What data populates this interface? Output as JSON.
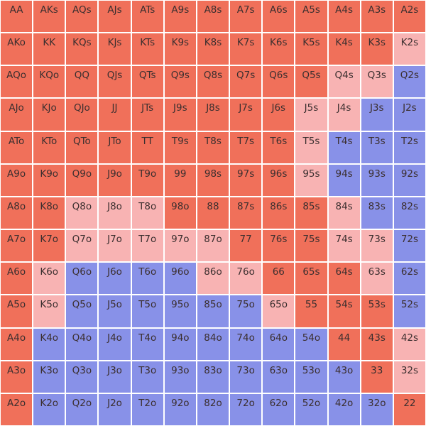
{
  "colors": {
    "r": "#f0705a",
    "p": "#f8b3b3",
    "b": "#8891e8"
  },
  "hands": [
    [
      "AA",
      "AKs",
      "AQs",
      "AJs",
      "ATs",
      "A9s",
      "A8s",
      "A7s",
      "A6s",
      "A5s",
      "A4s",
      "A3s",
      "A2s"
    ],
    [
      "AKo",
      "KK",
      "KQs",
      "KJs",
      "KTs",
      "K9s",
      "K8s",
      "K7s",
      "K6s",
      "K5s",
      "K4s",
      "K3s",
      "K2s"
    ],
    [
      "AQo",
      "KQo",
      "QQ",
      "QJs",
      "QTs",
      "Q9s",
      "Q8s",
      "Q7s",
      "Q6s",
      "Q5s",
      "Q4s",
      "Q3s",
      "Q2s"
    ],
    [
      "AJo",
      "KJo",
      "QJo",
      "JJ",
      "JTs",
      "J9s",
      "J8s",
      "J7s",
      "J6s",
      "J5s",
      "J4s",
      "J3s",
      "J2s"
    ],
    [
      "ATo",
      "KTo",
      "QTo",
      "JTo",
      "TT",
      "T9s",
      "T8s",
      "T7s",
      "T6s",
      "T5s",
      "T4s",
      "T3s",
      "T2s"
    ],
    [
      "A9o",
      "K9o",
      "Q9o",
      "J9o",
      "T9o",
      "99",
      "98s",
      "97s",
      "96s",
      "95s",
      "94s",
      "93s",
      "92s"
    ],
    [
      "A8o",
      "K8o",
      "Q8o",
      "J8o",
      "T8o",
      "98o",
      "88",
      "87s",
      "86s",
      "85s",
      "84s",
      "83s",
      "82s"
    ],
    [
      "A7o",
      "K7o",
      "Q7o",
      "J7o",
      "T7o",
      "97o",
      "87o",
      "77",
      "76s",
      "75s",
      "74s",
      "73s",
      "72s"
    ],
    [
      "A6o",
      "K6o",
      "Q6o",
      "J6o",
      "T6o",
      "96o",
      "86o",
      "76o",
      "66",
      "65s",
      "64s",
      "63s",
      "62s"
    ],
    [
      "A5o",
      "K5o",
      "Q5o",
      "J5o",
      "T5o",
      "95o",
      "85o",
      "75o",
      "65o",
      "55",
      "54s",
      "53s",
      "52s"
    ],
    [
      "A4o",
      "K4o",
      "Q4o",
      "J4o",
      "T4o",
      "94o",
      "84o",
      "74o",
      "64o",
      "54o",
      "44",
      "43s",
      "42s"
    ],
    [
      "A3o",
      "K3o",
      "Q3o",
      "J3o",
      "T3o",
      "93o",
      "83o",
      "73o",
      "63o",
      "53o",
      "43o",
      "33",
      "32s"
    ],
    [
      "A2o",
      "K2o",
      "Q2o",
      "J2o",
      "T2o",
      "92o",
      "82o",
      "72o",
      "62o",
      "52o",
      "42o",
      "32o",
      "22"
    ]
  ],
  "actions": [
    [
      "r",
      "r",
      "r",
      "r",
      "r",
      "r",
      "r",
      "r",
      "r",
      "r",
      "r",
      "r",
      "r"
    ],
    [
      "r",
      "r",
      "r",
      "r",
      "r",
      "r",
      "r",
      "r",
      "r",
      "r",
      "r",
      "r",
      "p"
    ],
    [
      "r",
      "r",
      "r",
      "r",
      "r",
      "r",
      "r",
      "r",
      "r",
      "r",
      "p",
      "p",
      "b"
    ],
    [
      "r",
      "r",
      "r",
      "r",
      "r",
      "r",
      "r",
      "r",
      "r",
      "p",
      "p",
      "b",
      "b"
    ],
    [
      "r",
      "r",
      "r",
      "r",
      "r",
      "r",
      "r",
      "r",
      "r",
      "p",
      "b",
      "b",
      "b"
    ],
    [
      "r",
      "r",
      "r",
      "r",
      "r",
      "r",
      "r",
      "r",
      "r",
      "p",
      "b",
      "b",
      "b"
    ],
    [
      "r",
      "r",
      "p",
      "p",
      "p",
      "r",
      "r",
      "r",
      "r",
      "r",
      "p",
      "b",
      "b"
    ],
    [
      "r",
      "r",
      "p",
      "p",
      "p",
      "p",
      "p",
      "r",
      "r",
      "r",
      "p",
      "p",
      "b"
    ],
    [
      "r",
      "p",
      "b",
      "b",
      "b",
      "b",
      "p",
      "p",
      "r",
      "r",
      "r",
      "p",
      "b"
    ],
    [
      "r",
      "p",
      "b",
      "b",
      "b",
      "b",
      "b",
      "b",
      "p",
      "r",
      "r",
      "r",
      "b"
    ],
    [
      "r",
      "b",
      "b",
      "b",
      "b",
      "b",
      "b",
      "b",
      "b",
      "b",
      "r",
      "r",
      "p"
    ],
    [
      "r",
      "b",
      "b",
      "b",
      "b",
      "b",
      "b",
      "b",
      "b",
      "b",
      "b",
      "r",
      "p"
    ],
    [
      "r",
      "b",
      "b",
      "b",
      "b",
      "b",
      "b",
      "b",
      "b",
      "b",
      "b",
      "b",
      "r"
    ]
  ]
}
